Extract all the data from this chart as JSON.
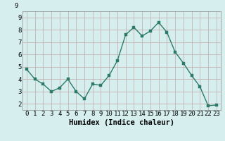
{
  "x": [
    0,
    1,
    2,
    3,
    4,
    5,
    6,
    7,
    8,
    9,
    10,
    11,
    12,
    13,
    14,
    15,
    16,
    17,
    18,
    19,
    20,
    21,
    22,
    23
  ],
  "y": [
    4.8,
    4.0,
    3.6,
    3.0,
    3.3,
    4.0,
    3.0,
    2.4,
    3.6,
    3.5,
    4.3,
    5.5,
    7.6,
    8.2,
    7.5,
    7.9,
    8.6,
    7.8,
    6.2,
    5.3,
    4.3,
    3.4,
    1.85,
    1.9
  ],
  "line_color": "#2d7a6a",
  "marker_color": "#2d7a6a",
  "bg_color": "#d6efee",
  "grid_color": "#c0a8a8",
  "xlabel": "Humidex (Indice chaleur)",
  "xlim": [
    -0.5,
    23.5
  ],
  "ylim": [
    1.5,
    9.5
  ],
  "yticks": [
    2,
    3,
    4,
    5,
    6,
    7,
    8,
    9
  ],
  "xticks": [
    0,
    1,
    2,
    3,
    4,
    5,
    6,
    7,
    8,
    9,
    10,
    11,
    12,
    13,
    14,
    15,
    16,
    17,
    18,
    19,
    20,
    21,
    22,
    23
  ],
  "marker_size": 2.5,
  "line_width": 1.0,
  "xlabel_fontsize": 7.5,
  "tick_fontsize": 6.5,
  "y_top_label": "9"
}
